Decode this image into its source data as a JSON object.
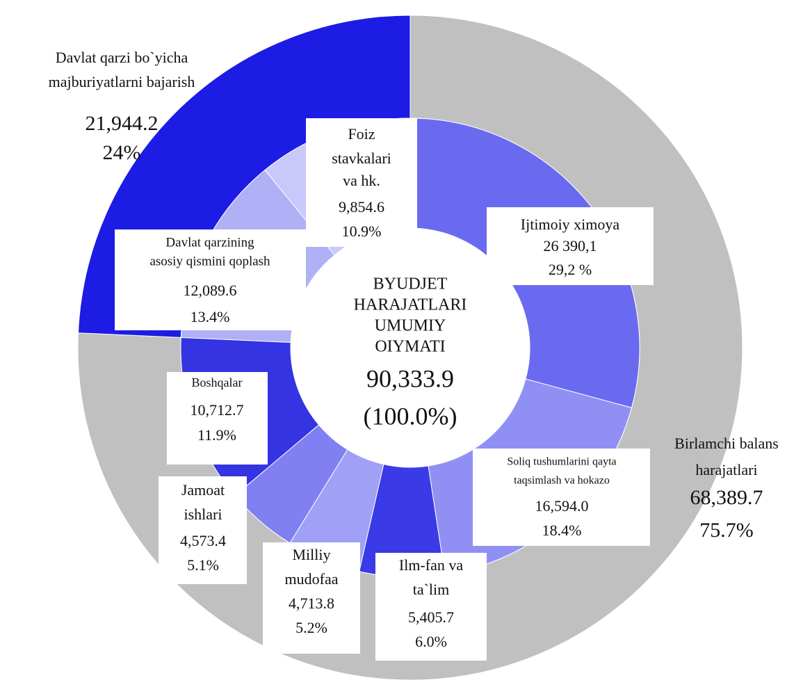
{
  "chart_data": {
    "type": "sunburst",
    "center_label": [
      "BYUDJET",
      "HARAJATLARI",
      "UMUMIY",
      "OIYMATI"
    ],
    "total": 90333.9,
    "total_label": "90,333.9",
    "total_percent": 100,
    "total_percent_label": "(100.0%)",
    "outer": {
      "categories": [
        [
          "Birlamchi balans",
          "harajatlari"
        ],
        [
          "Davlat qarzi bo`yicha",
          "majburiyatlarni bajarish"
        ]
      ],
      "values": [
        68389.7,
        21944.2
      ],
      "value_labels": [
        "68,389.7",
        "21,944.2"
      ],
      "percents": [
        75.7,
        24
      ],
      "percent_labels": [
        "75.7%",
        "24%"
      ],
      "colors": [
        "#c0c0c0",
        "#1c1ce4"
      ]
    },
    "inner": {
      "categories": [
        [
          "Ijtimoiy ximoya"
        ],
        [
          "Soliq tushumlarini qayta",
          "taqsimlash va hokazo"
        ],
        [
          "Ilm-fan va",
          "ta`lim"
        ],
        [
          "Milliy",
          "mudofaa"
        ],
        [
          "Jamoat",
          "ishlari"
        ],
        [
          "Boshqalar"
        ],
        [
          "Davlat qarzining",
          "asosiy qismini qoplash"
        ],
        [
          "Foiz",
          "stavkalari",
          "va hk."
        ]
      ],
      "values": [
        26390.1,
        16594.0,
        5405.7,
        4713.8,
        4573.4,
        10712.7,
        12089.6,
        9854.6
      ],
      "value_labels": [
        "26 390,1",
        "16,594.0",
        "5,405.7",
        "4,713.8",
        "4,573.4",
        "10,712.7",
        "12,089.6",
        "9,854.6"
      ],
      "percents": [
        29.2,
        18.4,
        6.0,
        5.2,
        5.1,
        11.9,
        13.4,
        10.9
      ],
      "percent_labels": [
        "29,2 %",
        "18.4%",
        "6.0%",
        "5.2%",
        "5.1%",
        "11.9%",
        "13.4%",
        "10.9%"
      ],
      "colors": [
        "#6a6af0",
        "#9090f4",
        "#3a3ae6",
        "#a0a0f6",
        "#8080f2",
        "#3434e2",
        "#b0b0f6",
        "#c8c8fa"
      ]
    }
  }
}
